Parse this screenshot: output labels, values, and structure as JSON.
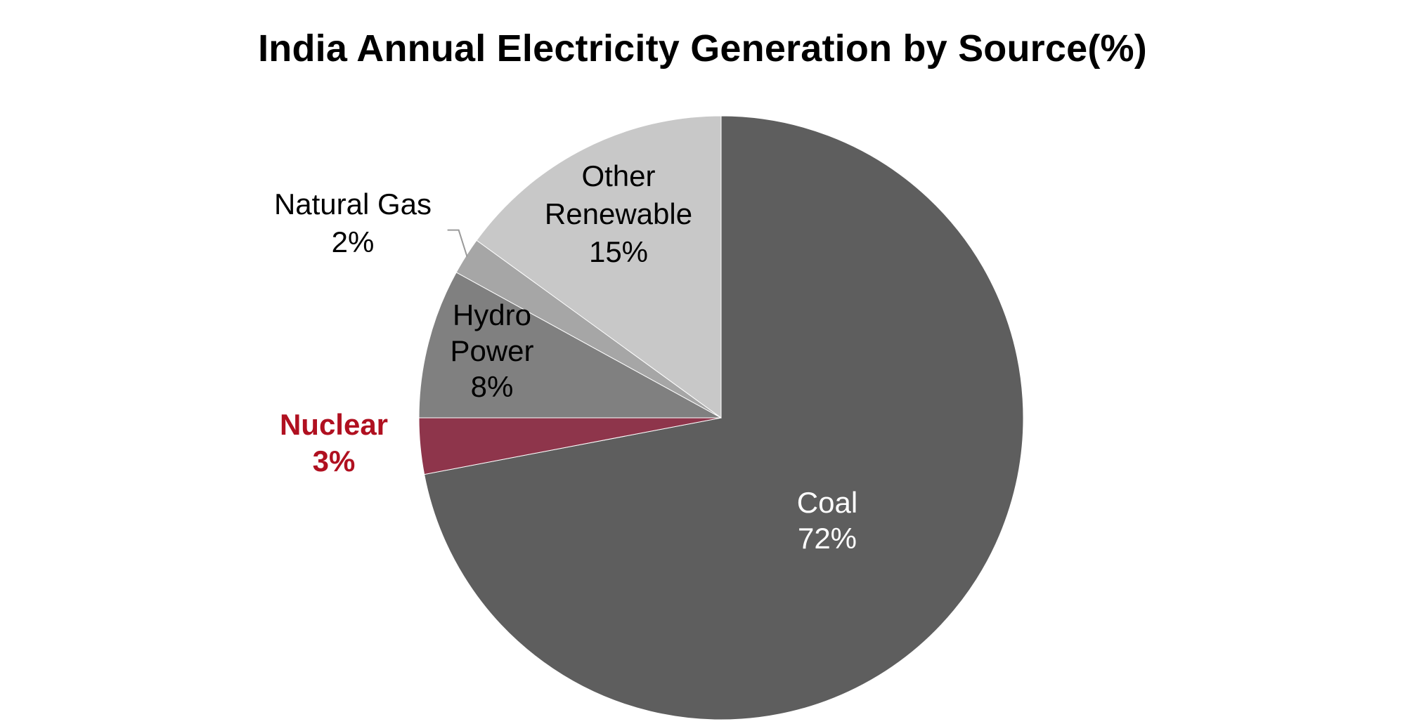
{
  "chart_data": {
    "type": "pie",
    "title": "India Annual Electricity Generation by Source(%)",
    "start_angle_deg": 0,
    "direction": "clockwise",
    "slices": [
      {
        "label": "Coal",
        "value": 72,
        "value_label": "72%",
        "color": "#5e5e5e",
        "label_color": "#ffffff",
        "label_weight": "normal"
      },
      {
        "label": "Nuclear",
        "value": 3,
        "value_label": "3%",
        "color": "#8e354b",
        "label_color": "#b01020",
        "label_weight": "bold"
      },
      {
        "label": "Hydro Power",
        "value": 8,
        "value_label": "8%",
        "color": "#808080",
        "label_color": "#000000",
        "label_weight": "normal"
      },
      {
        "label": "Natural Gas",
        "value": 2,
        "value_label": "2%",
        "color": "#a6a6a6",
        "label_color": "#000000",
        "label_weight": "normal"
      },
      {
        "label": "Other Renewable",
        "value": 15,
        "value_label": "15%",
        "color": "#c8c8c8",
        "label_color": "#000000",
        "label_weight": "normal"
      }
    ]
  }
}
